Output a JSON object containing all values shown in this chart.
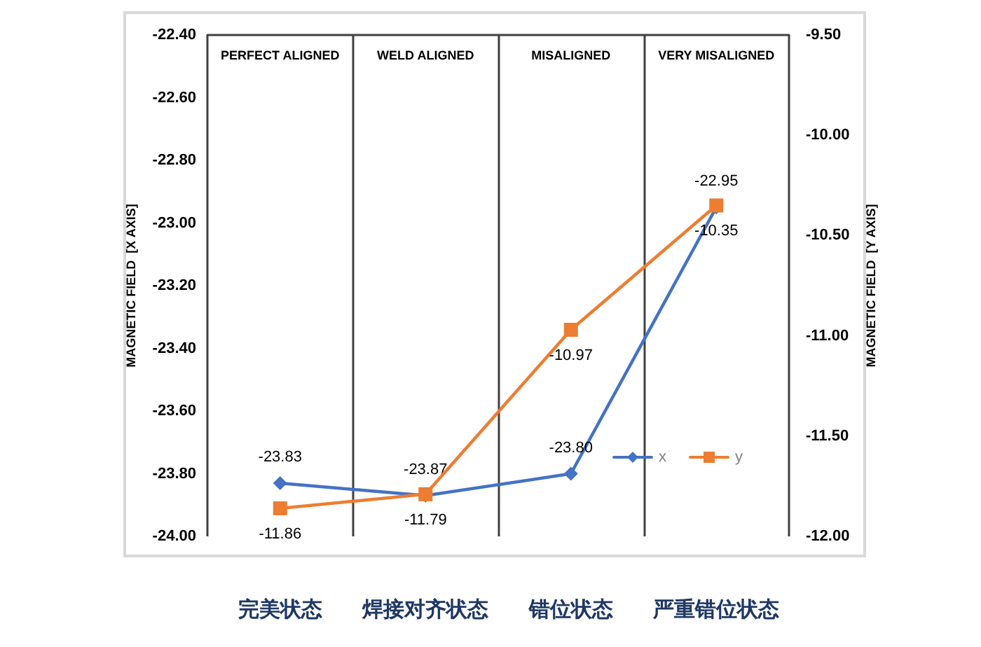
{
  "chart_data": {
    "type": "line",
    "categories": [
      "PERFECT ALIGNED",
      "WELD ALIGNED",
      "MISALIGNED",
      "VERY MISALIGNED"
    ],
    "series": [
      {
        "name": "x",
        "color": "#4472c4",
        "marker": "diamond",
        "values": [
          -23.83,
          -23.87,
          -23.8,
          -22.95
        ],
        "value_labels": [
          "-23.83",
          "-23.87",
          "-23.80",
          "-22.95"
        ]
      },
      {
        "name": "y",
        "color": "#ed7d31",
        "marker": "square",
        "axis": "y2",
        "values": [
          -11.86,
          -11.79,
          -10.97,
          -10.35
        ],
        "value_labels": [
          "-11.86",
          "-11.79",
          "-10.97",
          "-10.35"
        ]
      }
    ],
    "ylabel": "MAGNETIC FIELD  [X AXIS]",
    "y2label": "MAGNETIC FIELD  [Y AXIS]",
    "ylim": [
      -24,
      -22.4
    ],
    "yticks": [
      {
        "value": -24,
        "label": "-24.00"
      },
      {
        "value": -23.8,
        "label": "-23.80"
      },
      {
        "value": -23.6,
        "label": "-23.60"
      },
      {
        "value": -23.4,
        "label": "-23.40"
      },
      {
        "value": -23.2,
        "label": "-23.20"
      },
      {
        "value": -23,
        "label": "-23.00"
      },
      {
        "value": -22.8,
        "label": "-22.80"
      },
      {
        "value": -22.6,
        "label": "-22.60"
      },
      {
        "value": -22.4,
        "label": "-22.40"
      }
    ],
    "y2lim": [
      -12,
      -9.5
    ],
    "y2ticks": [
      {
        "value": -12,
        "label": "-12.00"
      },
      {
        "value": -11.5,
        "label": "-11.50"
      },
      {
        "value": -11,
        "label": "-11.00"
      },
      {
        "value": -10.5,
        "label": "-10.50"
      },
      {
        "value": -10,
        "label": "-10.00"
      },
      {
        "value": -9.5,
        "label": "-9.50"
      }
    ],
    "annotations": [
      "完美状态",
      "焊接对齐状态",
      "错位状态",
      "严重错位状态"
    ],
    "grid": "x",
    "legend": "bottom right"
  }
}
